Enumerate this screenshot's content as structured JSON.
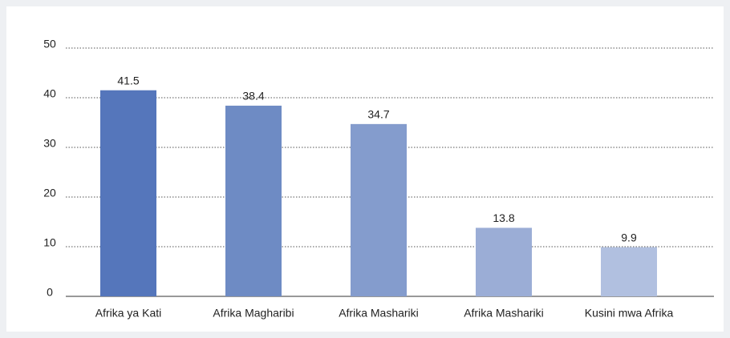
{
  "chart_data": {
    "type": "bar",
    "categories": [
      "Afrika ya Kati",
      "Afrika Magharibi",
      "Afrika Mashariki",
      "Afrika Mashariki",
      "Kusini mwa Afrika"
    ],
    "values": [
      41.5,
      38.4,
      34.7,
      13.8,
      9.9
    ],
    "colors": [
      "#5576bb",
      "#6e8bc4",
      "#849ccd",
      "#9badd6",
      "#b1c0e0"
    ],
    "ylim": [
      0,
      50
    ],
    "yticks": [
      0,
      10,
      20,
      30,
      40,
      50
    ],
    "grid": true
  }
}
